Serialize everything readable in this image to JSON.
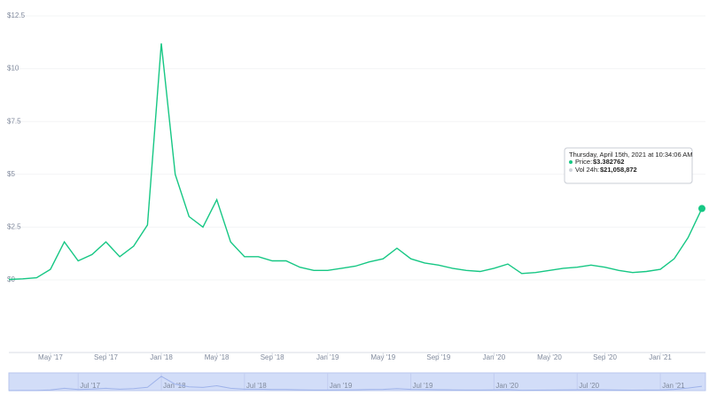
{
  "chart_data": {
    "type": "line",
    "x": [
      "2017-02",
      "2017-03",
      "2017-04",
      "2017-05",
      "2017-06",
      "2017-07",
      "2017-08",
      "2017-09",
      "2017-10",
      "2017-11",
      "2017-12",
      "2018-01",
      "2018-02",
      "2018-03",
      "2018-04",
      "2018-05",
      "2018-06",
      "2018-07",
      "2018-08",
      "2018-09",
      "2018-10",
      "2018-11",
      "2018-12",
      "2019-01",
      "2019-02",
      "2019-03",
      "2019-04",
      "2019-05",
      "2019-06",
      "2019-07",
      "2019-08",
      "2019-09",
      "2019-10",
      "2019-11",
      "2019-12",
      "2020-01",
      "2020-02",
      "2020-03",
      "2020-04",
      "2020-05",
      "2020-06",
      "2020-07",
      "2020-08",
      "2020-09",
      "2020-10",
      "2020-11",
      "2020-12",
      "2021-01",
      "2021-02",
      "2021-03",
      "2021-04"
    ],
    "series": [
      {
        "name": "Price",
        "color": "#16c784",
        "values": [
          0.02,
          0.05,
          0.1,
          0.5,
          1.8,
          0.9,
          1.2,
          1.8,
          1.1,
          1.6,
          2.6,
          11.2,
          5.0,
          3.0,
          2.5,
          3.8,
          1.8,
          1.1,
          1.1,
          0.9,
          0.9,
          0.6,
          0.45,
          0.45,
          0.55,
          0.65,
          0.85,
          1.0,
          1.5,
          1.0,
          0.8,
          0.7,
          0.55,
          0.45,
          0.4,
          0.55,
          0.75,
          0.3,
          0.35,
          0.45,
          0.55,
          0.6,
          0.7,
          0.6,
          0.45,
          0.35,
          0.4,
          0.5,
          1.0,
          2.0,
          3.38
        ]
      }
    ],
    "xlim": [
      "2017-02",
      "2021-04"
    ],
    "ylim": [
      0,
      12.5
    ],
    "yticks": [
      {
        "value": 0,
        "label": "$0"
      },
      {
        "value": 2.5,
        "label": "$2.5"
      },
      {
        "value": 5,
        "label": "$5"
      },
      {
        "value": 7.5,
        "label": "$7.5"
      },
      {
        "value": 10,
        "label": "$10"
      },
      {
        "value": 12.5,
        "label": "$12.5"
      }
    ],
    "xticks": [
      {
        "value": "2017-05",
        "label": "May '17"
      },
      {
        "value": "2017-09",
        "label": "Sep '17"
      },
      {
        "value": "2018-01",
        "label": "Jan '18"
      },
      {
        "value": "2018-05",
        "label": "May '18"
      },
      {
        "value": "2018-09",
        "label": "Sep '18"
      },
      {
        "value": "2019-01",
        "label": "Jan '19"
      },
      {
        "value": "2019-05",
        "label": "May '19"
      },
      {
        "value": "2019-09",
        "label": "Sep '19"
      },
      {
        "value": "2020-01",
        "label": "Jan '20"
      },
      {
        "value": "2020-05",
        "label": "May '20"
      },
      {
        "value": "2020-09",
        "label": "Sep '20"
      },
      {
        "value": "2021-01",
        "label": "Jan '21"
      }
    ],
    "navigator_xticks": [
      {
        "value": "2017-07",
        "label": "Jul '17"
      },
      {
        "value": "2018-01",
        "label": "Jan '18"
      },
      {
        "value": "2018-07",
        "label": "Jul '18"
      },
      {
        "value": "2019-01",
        "label": "Jan '19"
      },
      {
        "value": "2019-07",
        "label": "Jul '19"
      },
      {
        "value": "2020-01",
        "label": "Jan '20"
      },
      {
        "value": "2020-07",
        "label": "Jul '20"
      },
      {
        "value": "2021-01",
        "label": "Jan '21"
      }
    ],
    "tooltip": {
      "title": "Thursday, April 15th, 2021 at 10:34:06 AM",
      "price_label": "Price:",
      "price": "$3.382762",
      "volume_label": "Vol 24h:",
      "volume": "$21,058,872"
    }
  }
}
